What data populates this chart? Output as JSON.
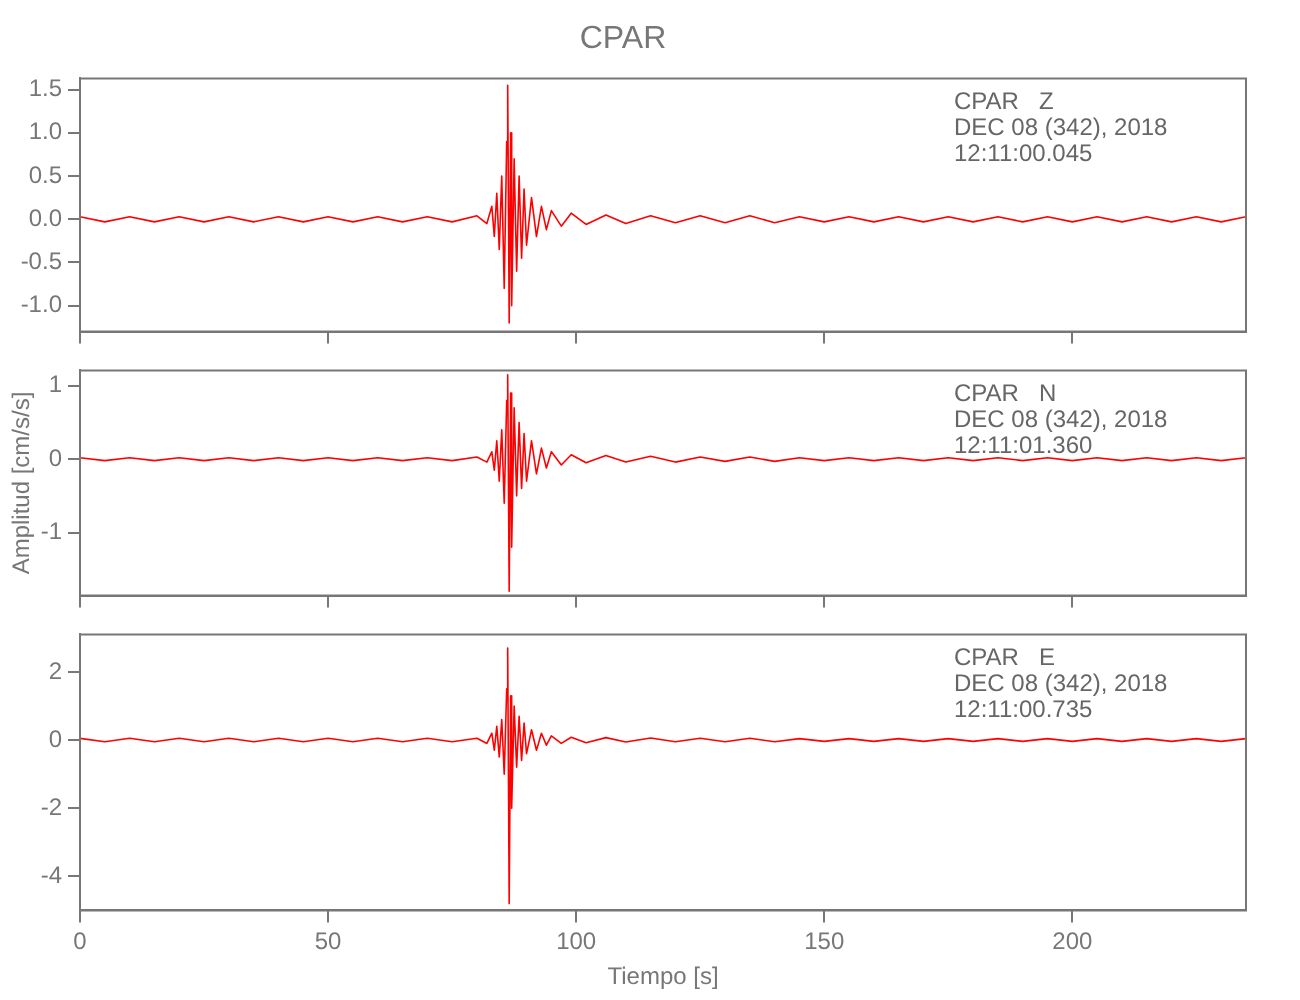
{
  "chart_data": [
    {
      "type": "line",
      "title": "CPAR",
      "annotations": [
        "CPAR   Z",
        "DEC 08 (342), 2018",
        "12:11:00.045"
      ],
      "x": [
        0,
        5,
        10,
        15,
        20,
        25,
        30,
        35,
        40,
        45,
        50,
        55,
        60,
        65,
        70,
        75,
        80,
        82,
        83,
        83.5,
        84,
        84.5,
        85,
        85.5,
        86,
        86.2,
        86.5,
        86.8,
        87,
        87.5,
        88,
        88.5,
        89,
        89.5,
        90,
        91,
        92,
        93,
        94,
        95,
        97,
        99,
        102,
        106,
        110,
        115,
        120,
        125,
        130,
        135,
        140,
        145,
        150,
        155,
        160,
        165,
        170,
        175,
        180,
        185,
        190,
        195,
        200,
        205,
        210,
        215,
        220,
        225,
        230,
        235
      ],
      "series": [
        {
          "color": "#ff0000",
          "values": [
            0.03,
            -0.03,
            0.03,
            -0.03,
            0.03,
            -0.03,
            0.03,
            -0.03,
            0.03,
            -0.03,
            0.03,
            -0.03,
            0.03,
            -0.03,
            0.03,
            -0.03,
            0.04,
            -0.05,
            0.15,
            -0.2,
            0.3,
            -0.35,
            0.5,
            -0.8,
            0.9,
            1.55,
            -1.2,
            1.0,
            -1.0,
            0.7,
            -0.6,
            0.5,
            -0.45,
            0.35,
            -0.3,
            0.25,
            -0.2,
            0.15,
            -0.12,
            0.1,
            -0.08,
            0.07,
            -0.06,
            0.05,
            -0.05,
            0.04,
            -0.04,
            0.04,
            -0.04,
            0.04,
            -0.04,
            0.03,
            -0.03,
            0.03,
            -0.03,
            0.03,
            -0.03,
            0.03,
            -0.03,
            0.03,
            -0.03,
            0.03,
            -0.03,
            0.03,
            -0.03,
            0.03,
            -0.03,
            0.03,
            -0.03,
            0.03
          ]
        }
      ],
      "xlim": [
        0,
        235
      ],
      "xticks": [
        {
          "value": 0,
          "label": null
        },
        {
          "value": 50,
          "label": null
        },
        {
          "value": 100,
          "label": null
        },
        {
          "value": 150,
          "label": null
        },
        {
          "value": 200,
          "label": null
        }
      ],
      "ylim": [
        -1.3,
        1.63
      ],
      "yticks": [
        {
          "value": -1,
          "label": "-1.0"
        },
        {
          "value": -0.5,
          "label": "-0.5"
        },
        {
          "value": 0,
          "label": "0.0"
        },
        {
          "value": 0.5,
          "label": "0.5"
        },
        {
          "value": 1,
          "label": "1.0"
        },
        {
          "value": 1.5,
          "label": "1.5"
        }
      ],
      "tick_labels": "y",
      "grid": false,
      "legend": false,
      "marker": "none",
      "line_style": "solid"
    },
    {
      "type": "line",
      "ylabel": "Amplitud [cm/s/s]",
      "annotations": [
        "CPAR   N",
        "DEC 08 (342), 2018",
        "12:11:01.360"
      ],
      "x": [
        0,
        5,
        10,
        15,
        20,
        25,
        30,
        35,
        40,
        45,
        50,
        55,
        60,
        65,
        70,
        75,
        80,
        82,
        83,
        83.5,
        84,
        84.5,
        85,
        85.5,
        86,
        86.2,
        86.5,
        86.8,
        87,
        87.5,
        88,
        88.5,
        89,
        89.5,
        90,
        91,
        92,
        93,
        94,
        95,
        97,
        99,
        102,
        106,
        110,
        115,
        120,
        125,
        130,
        135,
        140,
        145,
        150,
        155,
        160,
        165,
        170,
        175,
        180,
        185,
        190,
        195,
        200,
        205,
        210,
        215,
        220,
        225,
        230,
        235
      ],
      "series": [
        {
          "color": "#ff0000",
          "values": [
            0.02,
            -0.02,
            0.02,
            -0.02,
            0.02,
            -0.02,
            0.02,
            -0.02,
            0.02,
            -0.02,
            0.02,
            -0.02,
            0.02,
            -0.02,
            0.02,
            -0.02,
            0.03,
            -0.04,
            0.1,
            -0.15,
            0.25,
            -0.3,
            0.4,
            -0.6,
            0.8,
            1.15,
            -1.8,
            0.9,
            -1.2,
            0.7,
            -0.5,
            0.5,
            -0.4,
            0.35,
            -0.3,
            0.25,
            -0.2,
            0.15,
            -0.12,
            0.1,
            -0.08,
            0.06,
            -0.05,
            0.05,
            -0.04,
            0.04,
            -0.04,
            0.03,
            -0.03,
            0.03,
            -0.03,
            0.02,
            -0.02,
            0.02,
            -0.02,
            0.02,
            -0.02,
            0.02,
            -0.02,
            0.02,
            -0.02,
            0.02,
            -0.02,
            0.02,
            -0.02,
            0.02,
            -0.02,
            0.02,
            -0.02,
            0.02
          ]
        }
      ],
      "xlim": [
        0,
        235
      ],
      "xticks": [
        {
          "value": 0,
          "label": null
        },
        {
          "value": 50,
          "label": null
        },
        {
          "value": 100,
          "label": null
        },
        {
          "value": 150,
          "label": null
        },
        {
          "value": 200,
          "label": null
        }
      ],
      "ylim": [
        -1.86,
        1.21
      ],
      "yticks": [
        -1,
        0,
        1
      ],
      "tick_labels": "y",
      "grid": false,
      "legend": false,
      "marker": "none",
      "line_style": "solid"
    },
    {
      "type": "line",
      "xlabel": "Tiempo [s]",
      "annotations": [
        "CPAR   E",
        "DEC 08 (342), 2018",
        "12:11:00.735"
      ],
      "x": [
        0,
        5,
        10,
        15,
        20,
        25,
        30,
        35,
        40,
        45,
        50,
        55,
        60,
        65,
        70,
        75,
        80,
        82,
        83,
        83.5,
        84,
        84.5,
        85,
        85.5,
        86,
        86.2,
        86.5,
        86.8,
        87,
        87.5,
        88,
        88.5,
        89,
        89.5,
        90,
        91,
        92,
        93,
        94,
        95,
        97,
        99,
        102,
        106,
        110,
        115,
        120,
        125,
        130,
        135,
        140,
        145,
        150,
        155,
        160,
        165,
        170,
        175,
        180,
        185,
        190,
        195,
        200,
        205,
        210,
        215,
        220,
        225,
        230,
        235
      ],
      "series": [
        {
          "color": "#ff0000",
          "values": [
            0.05,
            -0.05,
            0.05,
            -0.05,
            0.05,
            -0.05,
            0.05,
            -0.05,
            0.05,
            -0.05,
            0.05,
            -0.05,
            0.05,
            -0.05,
            0.05,
            -0.05,
            0.05,
            -0.1,
            0.2,
            -0.3,
            0.4,
            -0.5,
            0.6,
            -1.0,
            1.5,
            2.7,
            -4.8,
            1.3,
            -2.0,
            1.0,
            -0.8,
            0.7,
            -0.6,
            0.5,
            -0.4,
            0.3,
            -0.3,
            0.2,
            -0.15,
            0.12,
            -0.1,
            0.08,
            -0.08,
            0.07,
            -0.06,
            0.06,
            -0.05,
            0.05,
            -0.05,
            0.05,
            -0.05,
            0.04,
            -0.04,
            0.04,
            -0.04,
            0.04,
            -0.04,
            0.04,
            -0.04,
            0.04,
            -0.04,
            0.04,
            -0.04,
            0.04,
            -0.04,
            0.04,
            -0.04,
            0.04,
            -0.04,
            0.04
          ]
        }
      ],
      "xlim": [
        0,
        235
      ],
      "xticks": [
        0,
        50,
        100,
        150,
        200
      ],
      "ylim": [
        -5,
        3.1
      ],
      "yticks": [
        -4,
        -2,
        0,
        2
      ],
      "grid": false,
      "legend": false,
      "marker": "none",
      "line_style": "solid"
    }
  ]
}
